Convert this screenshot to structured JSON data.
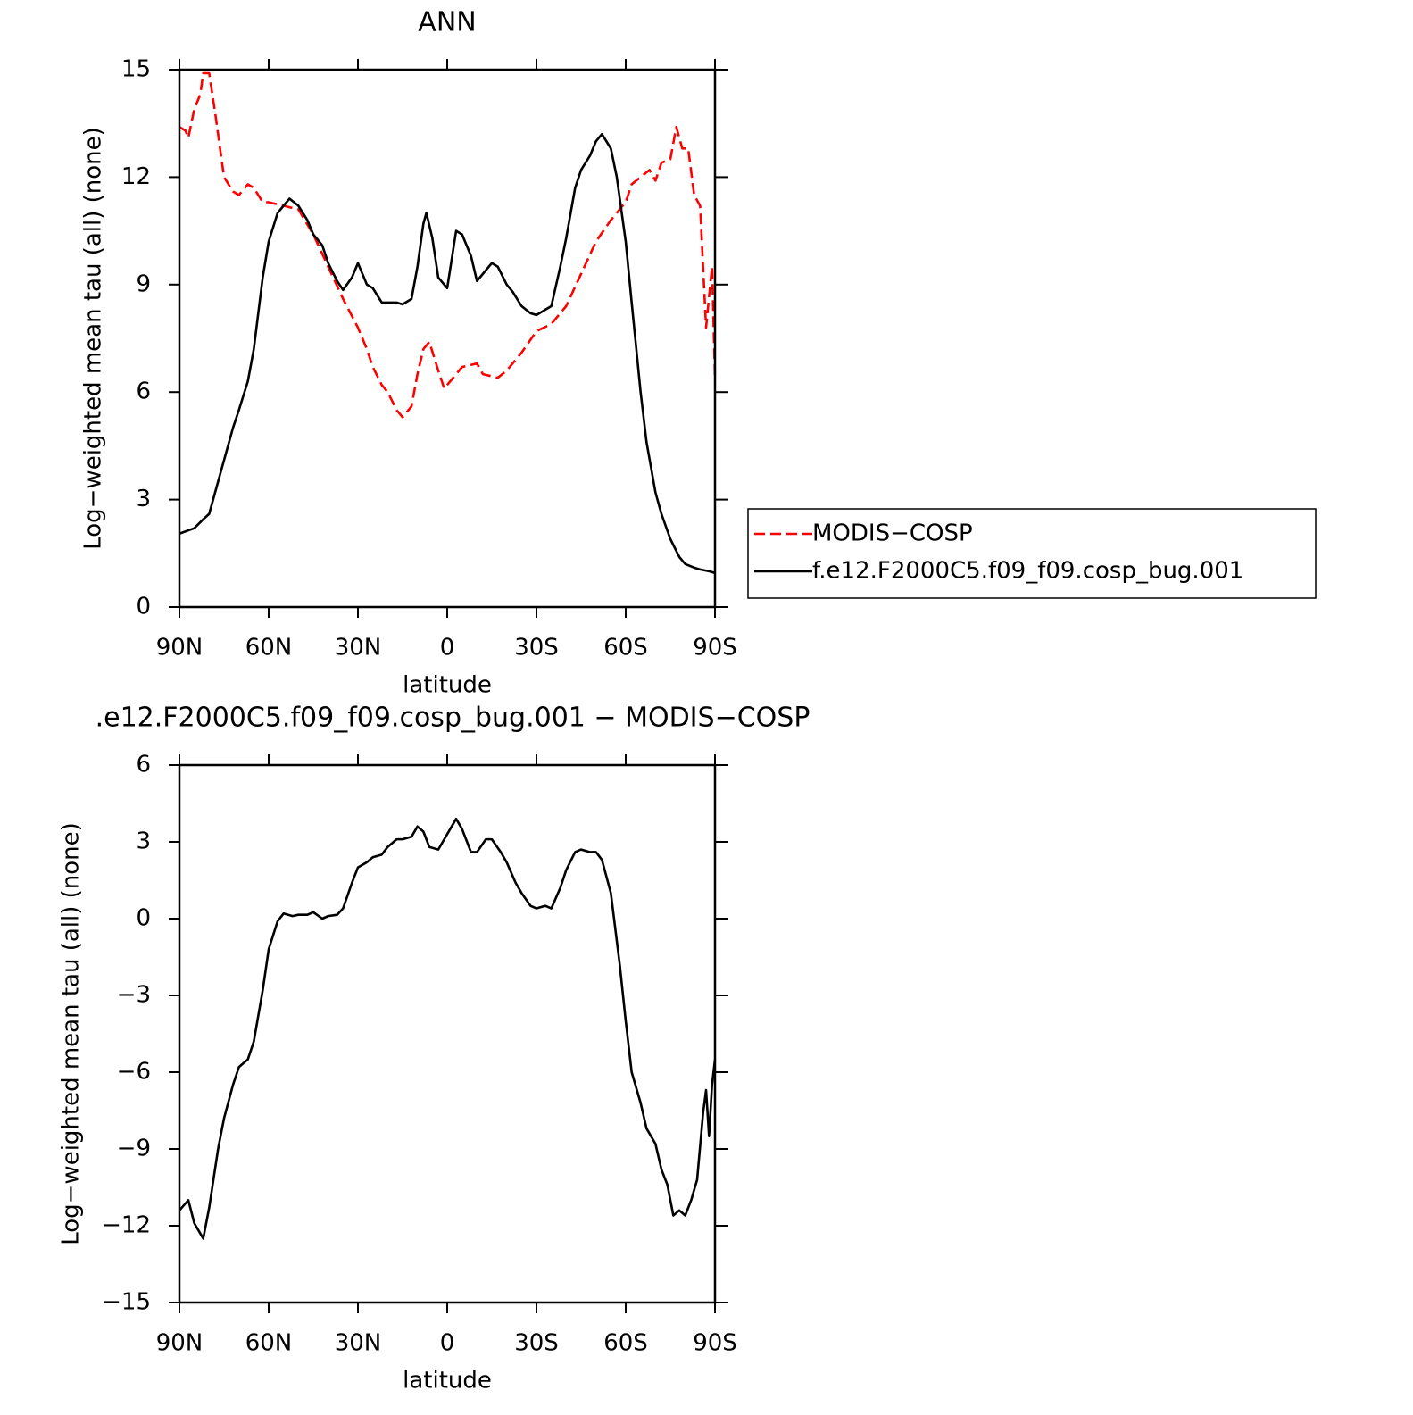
{
  "chart_data": [
    {
      "type": "line",
      "title": "ANN",
      "xlabel": "latitude",
      "ylabel": "Log−weighted mean tau (all) (none)",
      "xlim": [
        90,
        -90
      ],
      "xticks": [
        {
          "value": 90,
          "label": "90N"
        },
        {
          "value": 60,
          "label": "60N"
        },
        {
          "value": 30,
          "label": "30N"
        },
        0,
        {
          "value": -30,
          "label": "30S"
        },
        {
          "value": -60,
          "label": "60S"
        },
        {
          "value": -90,
          "label": "90S"
        }
      ],
      "ylim": [
        0,
        15
      ],
      "yticks": [
        0,
        3,
        6,
        9,
        12,
        15
      ],
      "legend": "right",
      "series": [
        {
          "name": "MODIS−COSP",
          "color": "#ff0000",
          "style": "dashed",
          "x": [
            90,
            88,
            87,
            85,
            83,
            82,
            80,
            78,
            77,
            75,
            72,
            70,
            67,
            65,
            62,
            60,
            55,
            50,
            45,
            40,
            35,
            30,
            27,
            25,
            22,
            20,
            17,
            15,
            12,
            10,
            8,
            6,
            3,
            1,
            -3,
            -5,
            -10,
            -12,
            -17,
            -20,
            -25,
            -30,
            -35,
            -40,
            -45,
            -50,
            -55,
            -60,
            -62,
            -65,
            -68,
            -70,
            -72,
            -75,
            -77,
            -79,
            -81,
            -83,
            -85,
            -87,
            -89,
            -90
          ],
          "values": [
            13.4,
            13.3,
            13.1,
            13.9,
            14.3,
            14.9,
            14.9,
            13.8,
            13.2,
            12.0,
            11.6,
            11.5,
            11.8,
            11.7,
            11.3,
            11.3,
            11.2,
            11.1,
            10.4,
            9.5,
            8.6,
            7.8,
            7.2,
            6.7,
            6.2,
            6.0,
            5.5,
            5.3,
            5.6,
            6.5,
            7.2,
            7.4,
            6.6,
            6.1,
            6.5,
            6.7,
            6.8,
            6.5,
            6.4,
            6.6,
            7.1,
            7.7,
            7.9,
            8.4,
            9.3,
            10.2,
            10.8,
            11.3,
            11.8,
            12.0,
            12.2,
            11.9,
            12.4,
            12.5,
            13.4,
            12.8,
            12.8,
            11.5,
            11.2,
            7.8,
            9.5,
            6.4
          ]
        },
        {
          "name": "f.e12.F2000C5.f09_f09.cosp_bug.001",
          "color": "#000000",
          "style": "solid",
          "x": [
            90,
            85,
            82,
            80,
            77,
            75,
            72,
            70,
            67,
            65,
            62,
            60,
            57,
            55,
            53,
            50,
            47,
            45,
            42,
            40,
            37,
            35,
            32,
            30,
            27,
            25,
            22,
            20,
            17,
            15,
            12,
            10,
            8,
            7,
            5,
            3,
            0,
            -3,
            -5,
            -8,
            -10,
            -12,
            -15,
            -17,
            -20,
            -22,
            -25,
            -28,
            -30,
            -33,
            -35,
            -38,
            -40,
            -43,
            -45,
            -48,
            -50,
            -52,
            -55,
            -57,
            -60,
            -62,
            -65,
            -67,
            -70,
            -72,
            -75,
            -78,
            -80,
            -83,
            -85,
            -88,
            -90
          ],
          "values": [
            2.05,
            2.2,
            2.45,
            2.6,
            3.5,
            4.1,
            5.0,
            5.5,
            6.3,
            7.2,
            9.2,
            10.2,
            11.0,
            11.2,
            11.4,
            11.2,
            10.8,
            10.4,
            10.1,
            9.6,
            9.1,
            8.85,
            9.2,
            9.6,
            9.0,
            8.9,
            8.5,
            8.5,
            8.5,
            8.45,
            8.6,
            9.5,
            10.7,
            11.0,
            10.3,
            9.2,
            8.9,
            10.5,
            10.4,
            9.8,
            9.1,
            9.3,
            9.6,
            9.5,
            9.0,
            8.8,
            8.4,
            8.2,
            8.15,
            8.3,
            8.4,
            9.5,
            10.3,
            11.7,
            12.2,
            12.6,
            13.0,
            13.2,
            12.8,
            12.0,
            10.2,
            8.5,
            6.0,
            4.6,
            3.2,
            2.6,
            1.9,
            1.4,
            1.2,
            1.1,
            1.05,
            1.0,
            0.95
          ]
        }
      ]
    },
    {
      "type": "line",
      "title": ".e12.F2000C5.f09_f09.cosp_bug.001 − MODIS−COSP",
      "xlabel": "latitude",
      "ylabel": "Log−weighted mean tau (all) (none)",
      "xlim": [
        90,
        -90
      ],
      "xticks": [
        {
          "value": 90,
          "label": "90N"
        },
        {
          "value": 60,
          "label": "60N"
        },
        {
          "value": 30,
          "label": "30N"
        },
        0,
        {
          "value": -30,
          "label": "30S"
        },
        {
          "value": -60,
          "label": "60S"
        },
        {
          "value": -90,
          "label": "90S"
        }
      ],
      "ylim": [
        -15,
        6
      ],
      "yticks": [
        {
          "value": -15,
          "label": "−15"
        },
        {
          "value": -12,
          "label": "−12"
        },
        {
          "value": -9,
          "label": "−9"
        },
        {
          "value": -6,
          "label": "−6"
        },
        {
          "value": -3,
          "label": "−3"
        },
        0,
        3,
        6
      ],
      "color": "#000000",
      "x": [
        90,
        87,
        85,
        82,
        80,
        77,
        75,
        72,
        70,
        67,
        65,
        62,
        60,
        57,
        55,
        52,
        50,
        47,
        45,
        42,
        40,
        37,
        35,
        32,
        30,
        27,
        25,
        22,
        20,
        17,
        15,
        12,
        10,
        8,
        6,
        3,
        1,
        -3,
        -5,
        -8,
        -10,
        -13,
        -15,
        -18,
        -20,
        -23,
        -25,
        -28,
        -30,
        -33,
        -35,
        -38,
        -40,
        -43,
        -45,
        -48,
        -50,
        -52,
        -55,
        -58,
        -60,
        -62,
        -65,
        -67,
        -70,
        -72,
        -74,
        -76,
        -78,
        -80,
        -82,
        -84,
        -86,
        -87,
        -88,
        -89,
        -90
      ],
      "values": [
        -11.4,
        -11.0,
        -11.9,
        -12.5,
        -11.3,
        -9.0,
        -7.8,
        -6.5,
        -5.8,
        -5.5,
        -4.8,
        -2.8,
        -1.2,
        -0.1,
        0.2,
        0.1,
        0.15,
        0.15,
        0.25,
        0.0,
        0.1,
        0.15,
        0.4,
        1.4,
        2.0,
        2.2,
        2.4,
        2.5,
        2.8,
        3.1,
        3.1,
        3.2,
        3.6,
        3.4,
        2.8,
        2.7,
        3.1,
        3.9,
        3.5,
        2.6,
        2.6,
        3.1,
        3.1,
        2.6,
        2.2,
        1.4,
        1.0,
        0.5,
        0.4,
        0.5,
        0.4,
        1.2,
        1.9,
        2.6,
        2.7,
        2.6,
        2.6,
        2.3,
        1.0,
        -1.8,
        -4.0,
        -6.0,
        -7.2,
        -8.2,
        -8.8,
        -9.8,
        -10.4,
        -11.6,
        -11.4,
        -11.6,
        -11.0,
        -10.2,
        -7.6,
        -6.7,
        -8.5,
        -6.5,
        -5.5
      ]
    }
  ]
}
